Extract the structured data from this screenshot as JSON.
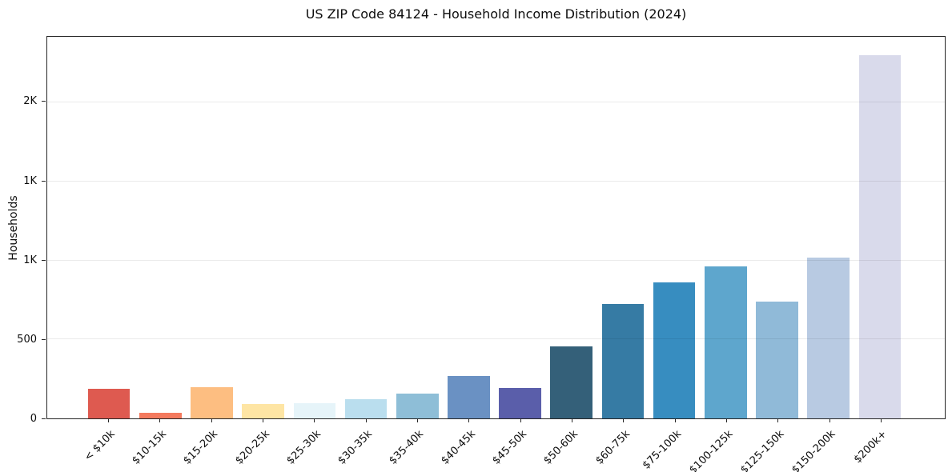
{
  "chart_data": {
    "type": "bar",
    "title": "US ZIP Code 84124 - Household Income Distribution (2024)",
    "xlabel": "",
    "ylabel": "Households",
    "categories": [
      "< $10k",
      "$10-15k",
      "$15-20k",
      "$20-25k",
      "$25-30k",
      "$30-35k",
      "$35-40k",
      "$40-45k",
      "$45-50k",
      "$50-60k",
      "$60-75k",
      "$75-100k",
      "$100-125k",
      "$125-150k",
      "$150-200k",
      "$200k+"
    ],
    "values": [
      185,
      38,
      200,
      90,
      95,
      122,
      155,
      270,
      190,
      455,
      725,
      860,
      960,
      740,
      1020,
      2300
    ],
    "bar_colors": [
      "#de5a50",
      "#f47a5e",
      "#fdbe81",
      "#fee5a4",
      "#e6f4f9",
      "#badeee",
      "#8ebed7",
      "#6a91c3",
      "#5a5eaa",
      "#346079",
      "#367ba4",
      "#378dc0",
      "#5ea6cd",
      "#90bad8",
      "#b8cae2",
      "#d9daeb"
    ],
    "ylim": [
      0,
      2415
    ],
    "yticks": [
      {
        "value": 0,
        "label": "0"
      },
      {
        "value": 500,
        "label": "500"
      },
      {
        "value": 1000,
        "label": "1K"
      },
      {
        "value": 1500,
        "label": "1K"
      },
      {
        "value": 2000,
        "label": "2K"
      }
    ],
    "grid": "horizontal lines at y ticks, drawn over bars",
    "legend": "none",
    "bar_width_fraction": 0.82
  },
  "colors": {
    "background": "#ffffff",
    "spine": "#262626",
    "gridline": "rgba(0,0,0,0.08)",
    "text": "#0d0d0d"
  }
}
